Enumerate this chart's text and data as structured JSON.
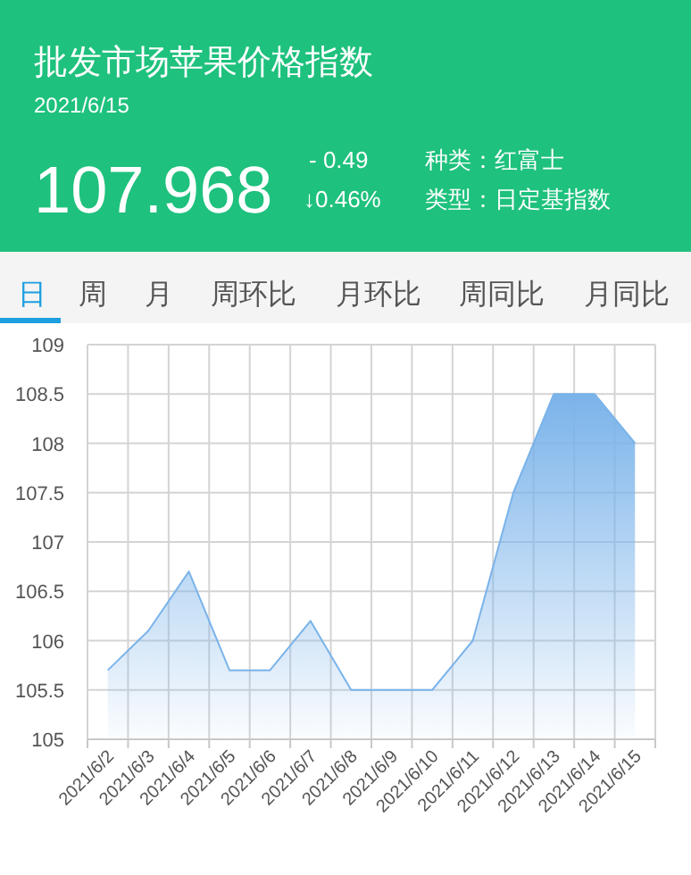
{
  "chart_data": {
    "type": "area",
    "title": "批发市场苹果价格指数",
    "subtitle": "2021/6/15",
    "annotations": [
      "107.968",
      "- 0.49",
      "↓0.46%",
      "种类：红富士",
      "类型：日定基指数",
      "日",
      "周",
      "月",
      "周环比",
      "月环比",
      "周同比",
      "月同比"
    ],
    "categories": [
      "2021/6/2",
      "2021/6/3",
      "2021/6/4",
      "2021/6/5",
      "2021/6/6",
      "2021/6/7",
      "2021/6/8",
      "2021/6/9",
      "2021/6/10",
      "2021/6/11",
      "2021/6/12",
      "2021/6/13",
      "2021/6/14",
      "2021/6/15"
    ],
    "series": [
      {
        "color": "#7ab3ea",
        "values": [
          105.7,
          106.1,
          106.7,
          105.7,
          105.7,
          106.2,
          105.5,
          105.5,
          105.5,
          106.0,
          107.5,
          108.5,
          108.5,
          108.0
        ]
      }
    ],
    "ylim": [
      105,
      109
    ],
    "yticks": [
      105,
      105.5,
      106,
      106.5,
      107,
      107.5,
      108,
      108.5,
      109
    ],
    "grid": true
  }
}
